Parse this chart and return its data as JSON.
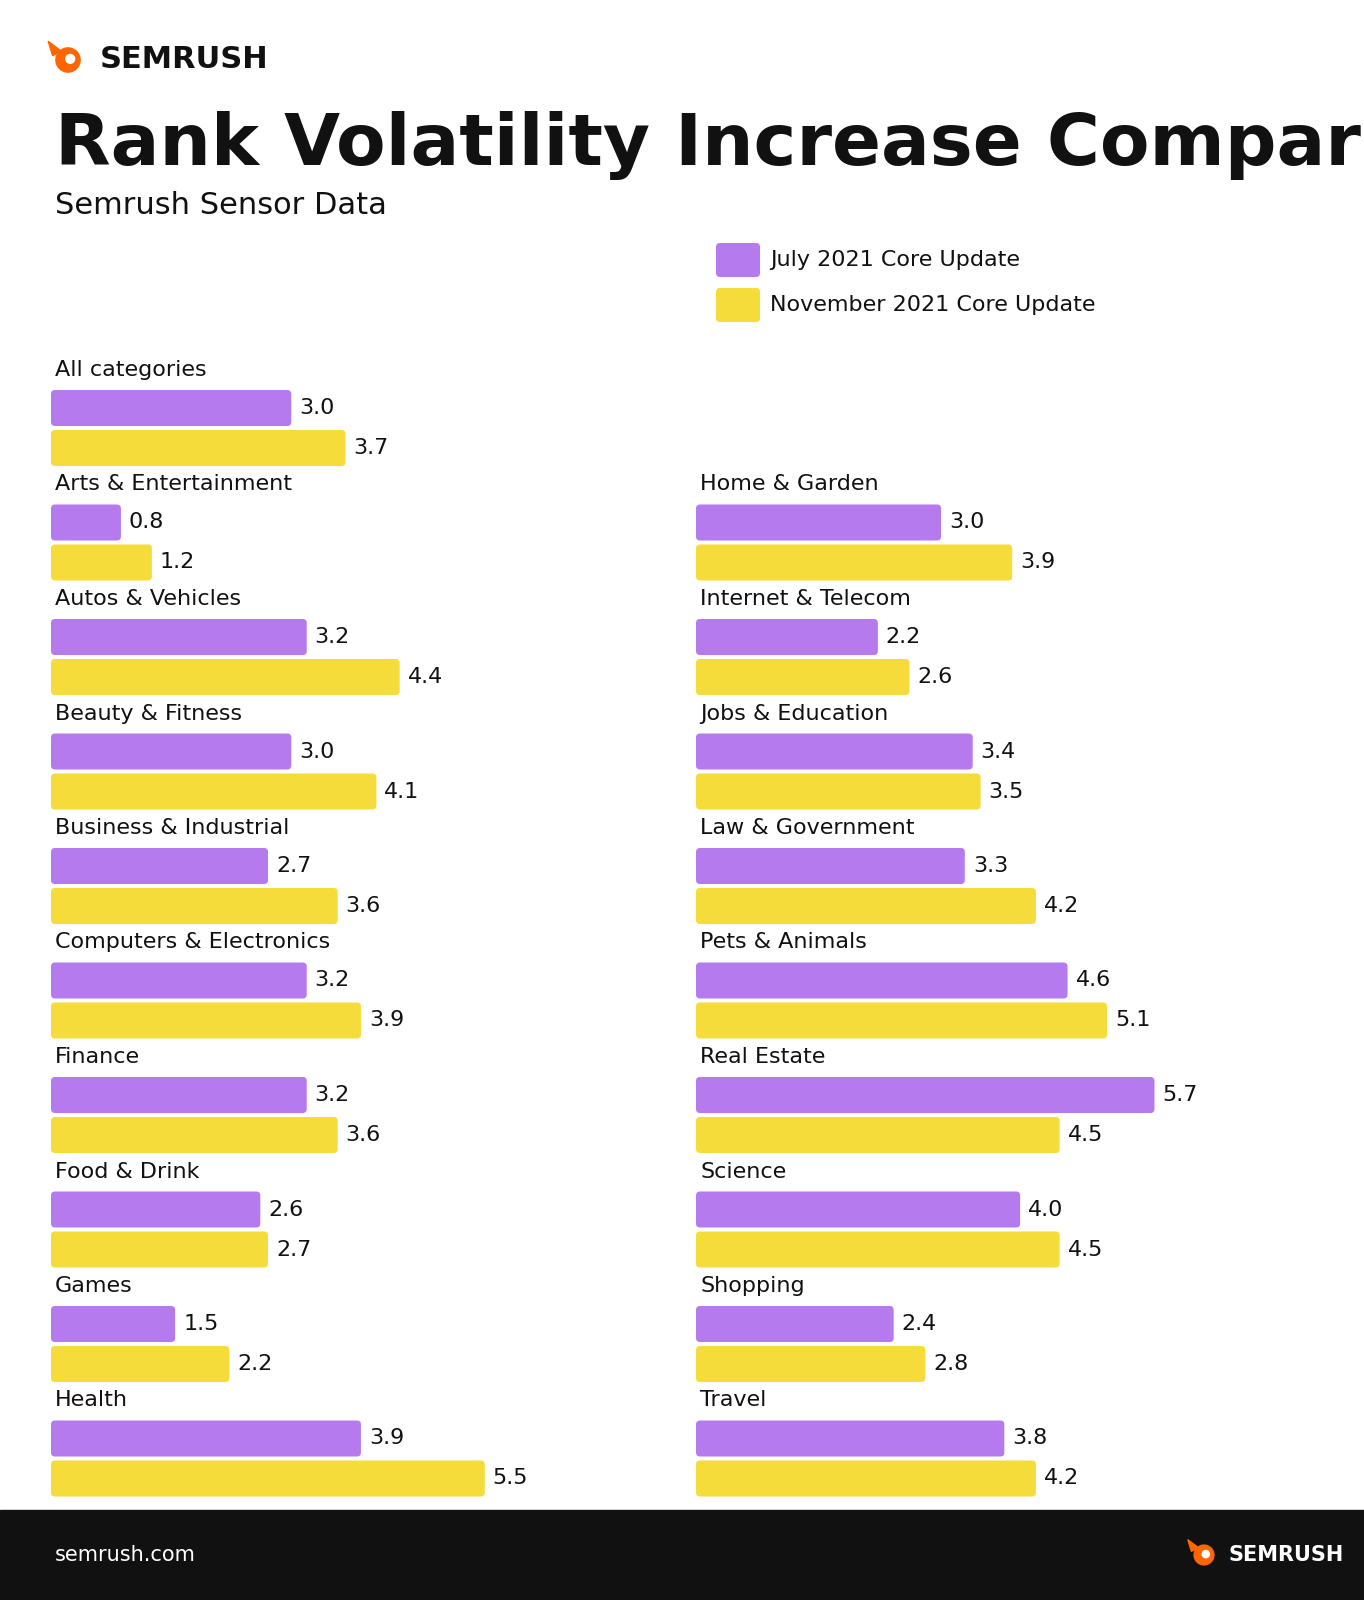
{
  "title": "Rank Volatility Increase Comparison",
  "subtitle": "Semrush Sensor Data",
  "bg_color": "#ffffff",
  "footer_bg": "#111111",
  "footer_text": "semrush.com",
  "legend_labels": [
    "July 2021 Core Update",
    "November 2021 Core Update"
  ],
  "left_categories": [
    {
      "name": "All categories",
      "july": 3.0,
      "nov": 3.7
    },
    {
      "name": "Arts & Entertainment",
      "july": 0.8,
      "nov": 1.2
    },
    {
      "name": "Autos & Vehicles",
      "july": 3.2,
      "nov": 4.4
    },
    {
      "name": "Beauty & Fitness",
      "july": 3.0,
      "nov": 4.1
    },
    {
      "name": "Business & Industrial",
      "july": 2.7,
      "nov": 3.6
    },
    {
      "name": "Computers & Electronics",
      "july": 3.2,
      "nov": 3.9
    },
    {
      "name": "Finance",
      "july": 3.2,
      "nov": 3.6
    },
    {
      "name": "Food & Drink",
      "july": 2.6,
      "nov": 2.7
    },
    {
      "name": "Games",
      "july": 1.5,
      "nov": 2.2
    },
    {
      "name": "Health",
      "july": 3.9,
      "nov": 5.5
    }
  ],
  "right_categories": [
    {
      "name": "Home & Garden",
      "july": 3.0,
      "nov": 3.9
    },
    {
      "name": "Internet & Telecom",
      "july": 2.2,
      "nov": 2.6
    },
    {
      "name": "Jobs & Education",
      "july": 3.4,
      "nov": 3.5
    },
    {
      "name": "Law & Government",
      "july": 3.3,
      "nov": 4.2
    },
    {
      "name": "Pets & Animals",
      "july": 4.6,
      "nov": 5.1
    },
    {
      "name": "Real Estate",
      "july": 5.7,
      "nov": 4.5
    },
    {
      "name": "Science",
      "july": 4.0,
      "nov": 4.5
    },
    {
      "name": "Shopping",
      "july": 2.4,
      "nov": 2.8
    },
    {
      "name": "Travel",
      "july": 3.8,
      "nov": 4.2
    }
  ],
  "max_value": 6.2,
  "purple_hex": "#b57bee",
  "yellow_hex": "#f5dc3a",
  "orange_hex": "#ff6600"
}
